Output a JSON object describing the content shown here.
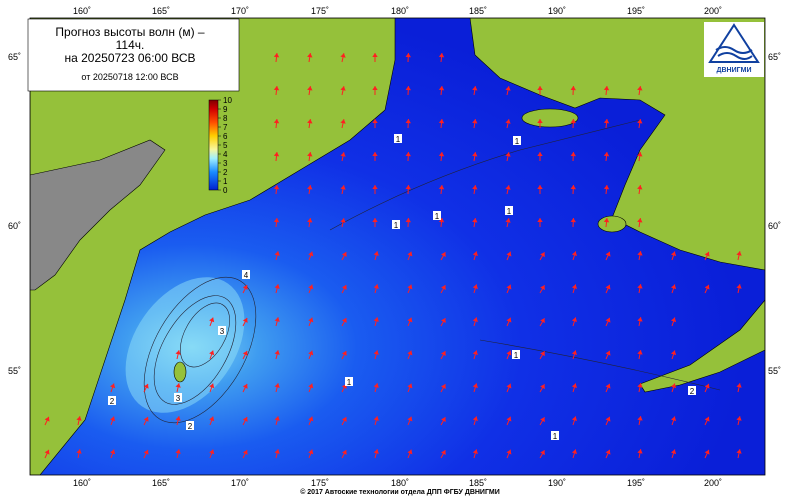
{
  "header": {
    "title": "Прогноз высоты волн (м) –\n114ч.",
    "valid": "на 20250723 06:00 ВСВ",
    "issued": "от 20250718 12:00 ВСВ"
  },
  "logo": {
    "text": "ДВНИГМИ"
  },
  "colorbar": {
    "ticks": [
      0,
      1,
      2,
      3,
      4,
      5,
      6,
      7,
      8,
      9,
      10
    ]
  },
  "lon_labels": [
    "160˚",
    "165˚",
    "170˚",
    "175˚",
    "180˚",
    "185˚",
    "190˚",
    "195˚",
    "200˚"
  ],
  "lat_labels": [
    "65˚",
    "60˚",
    "55˚"
  ],
  "contour_labels": [
    "1",
    "1",
    "1",
    "1",
    "1",
    "1",
    "1",
    "2",
    "2",
    "3",
    "3",
    "4",
    "2",
    "1"
  ],
  "footer": "© 2017 Автоские технологии отдела ДПП ФГБУ ДВНИГМИ"
}
